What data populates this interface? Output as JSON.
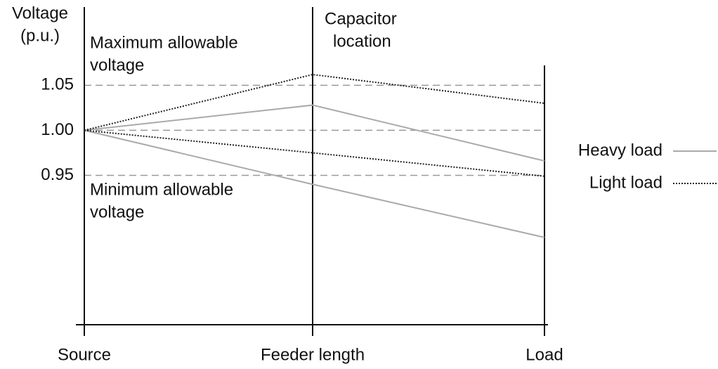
{
  "chart_data": {
    "type": "line",
    "ylabel": [
      "Voltage",
      "(p.u.)"
    ],
    "categories": [
      "Source",
      "Feeder length",
      "Load"
    ],
    "ylim": [
      0.784,
      1.137
    ],
    "yticks": [
      {
        "value": 0.95,
        "label": "0.95"
      },
      {
        "value": 1.0,
        "label": "1.00"
      },
      {
        "value": 1.05,
        "label": "1.05"
      }
    ],
    "grid": true,
    "grid_style": "dashed",
    "series": [
      {
        "name": "Heavy load",
        "color": "#aaaaaa",
        "style": "solid",
        "values": [
          1.0,
          1.028,
          0.966
        ]
      },
      {
        "name": "Light load",
        "color": "#222222",
        "style": "dotted",
        "values": [
          1.0,
          1.062,
          1.03
        ]
      },
      {
        "color": "#aaaaaa",
        "style": "solid",
        "values": [
          1.0,
          0.94,
          0.881
        ]
      },
      {
        "color": "#222222",
        "style": "dotted",
        "values": [
          1.0,
          0.975,
          0.949
        ]
      }
    ],
    "annotations": [
      {
        "text": [
          "Maximum allowable",
          "voltage"
        ]
      },
      {
        "text": [
          "Minimum allowable",
          "voltage"
        ]
      },
      {
        "text": [
          "Capacitor",
          "location"
        ]
      }
    ]
  }
}
